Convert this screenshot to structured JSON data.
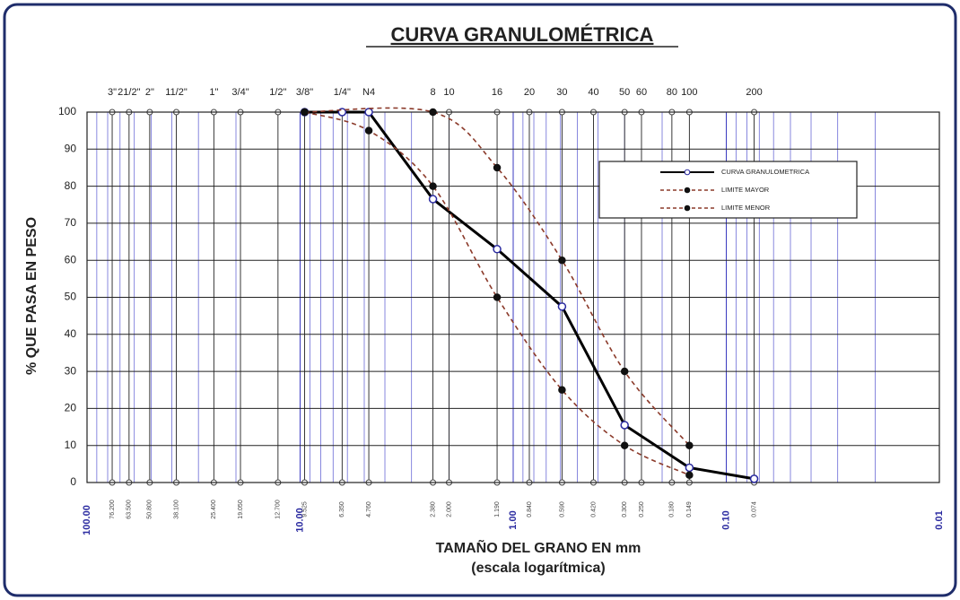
{
  "chart_data": {
    "type": "line",
    "title": "CURVA GRANULOMÉTRICA",
    "xlabel": "TAMAÑO DEL GRANO EN mm",
    "xlabel_note": "(escala logarítmica)",
    "ylabel": "% QUE PASA EN PESO",
    "log_x": true,
    "grid": true,
    "xlim": [
      100,
      0.01
    ],
    "xticks": [
      {
        "value": 100,
        "label": "100.00"
      },
      {
        "value": 10,
        "label": "10.00"
      },
      {
        "value": 1,
        "label": "1.00"
      },
      {
        "value": 0.1,
        "label": "0.10"
      },
      {
        "value": 0.01,
        "label": "0.01"
      }
    ],
    "ylim": [
      0,
      100
    ],
    "yticks": [
      0,
      10,
      20,
      30,
      40,
      50,
      60,
      70,
      80,
      90,
      100
    ],
    "sieves": [
      "3\"",
      "21/2\"",
      "2\"",
      "11/2\"",
      "1\"",
      "3/4\"",
      "1/2\"",
      "3/8\"",
      "1/4\"",
      "N4",
      "8",
      "10",
      "16",
      "20",
      "30",
      "40",
      "50",
      "60",
      "80",
      "100",
      "200"
    ],
    "sieve_sizes": [
      76.2,
      63.5,
      50.8,
      38.1,
      25.4,
      19.05,
      12.7,
      9.525,
      6.35,
      4.76,
      2.38,
      2.0,
      1.19,
      0.84,
      0.59,
      0.42,
      0.3,
      0.25,
      0.18,
      0.149,
      0.074
    ],
    "sieve_size_labels": [
      "76.200",
      "63.500",
      "50.800",
      "38.100",
      "25.400",
      "19.050",
      "12.700",
      "9.525",
      "6.350",
      "4.760",
      "2.380",
      "2.000",
      "1.190",
      "0.840",
      "0.590",
      "0.420",
      "0.300",
      "0.250",
      "0.180",
      "0.149",
      "0.074"
    ],
    "legend": "upper right",
    "series": [
      {
        "name": "CURVA GRANULOMETRICA",
        "color": "#000000",
        "style": "solid",
        "marker": "open",
        "x": [
          9.525,
          6.35,
          4.76,
          2.38,
          1.19,
          0.59,
          0.3,
          0.149,
          0.074
        ],
        "values": [
          100,
          100,
          100,
          76.5,
          63,
          47.5,
          15.5,
          4,
          1
        ]
      },
      {
        "name": "LIMITE MAYOR",
        "color": "#8b3a2a",
        "style": "dashed",
        "marker": "filled",
        "x": [
          9.525,
          2.38,
          1.19,
          0.59,
          0.3,
          0.149
        ],
        "values": [
          100,
          100,
          85,
          60,
          30,
          10
        ]
      },
      {
        "name": "LIMITE MENOR",
        "color": "#8b3a2a",
        "style": "dashed",
        "marker": "filled",
        "x": [
          9.525,
          4.76,
          2.38,
          1.19,
          0.59,
          0.3,
          0.149
        ],
        "values": [
          100,
          95,
          80,
          50,
          25,
          10,
          2
        ]
      }
    ]
  }
}
